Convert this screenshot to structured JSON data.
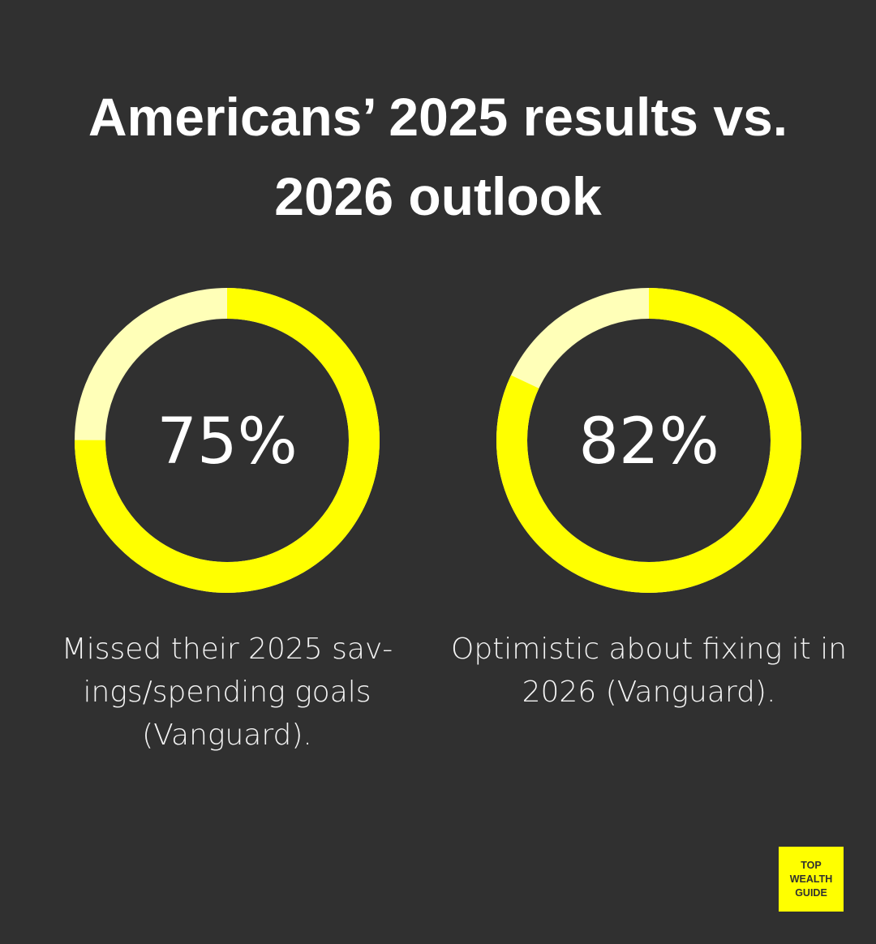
{
  "title_lines": [
    "Americans’ 2025 results vs.",
    "2026 outlook"
  ],
  "chart_data": [
    {
      "type": "pie",
      "style": "donut",
      "value": 75,
      "label": "75%",
      "caption_lines": [
        "Missed their 2025 sav-",
        "ings/spending goals",
        "(Vanguard)."
      ],
      "colors": {
        "filled": "#ffff00",
        "remainder": "#ffffb8"
      }
    },
    {
      "type": "pie",
      "style": "donut",
      "value": 82,
      "label": "82%",
      "caption_lines": [
        "Optimistic about fixing it in",
        "2026 (Vanguard)."
      ],
      "colors": {
        "filled": "#ffff00",
        "remainder": "#ffffb8"
      }
    }
  ],
  "logo": {
    "lines": [
      "TOP",
      "WEALTH",
      "GUIDE"
    ],
    "color": "#ffff00"
  },
  "background": "#303030"
}
